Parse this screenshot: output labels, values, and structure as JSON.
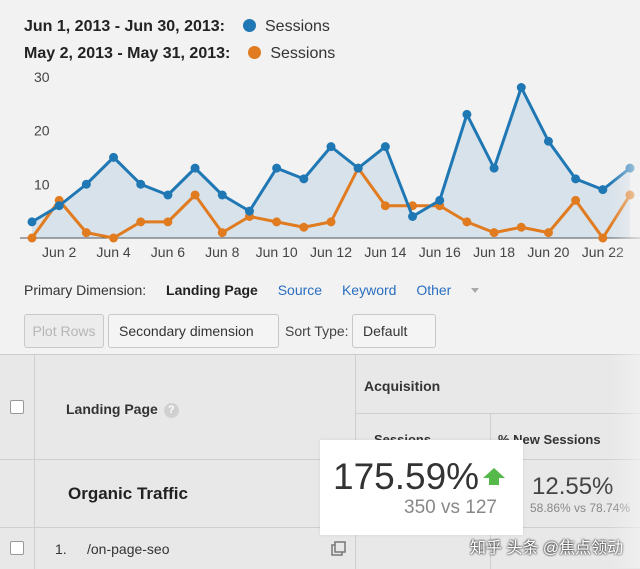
{
  "legend": [
    {
      "range": "Jun 1, 2013 - Jun 30, 2013:",
      "series": "Sessions",
      "color": "#1f77b4"
    },
    {
      "range": "May 2, 2013 - May 31, 2013:",
      "series": "Sessions",
      "color": "#e07b20"
    }
  ],
  "chart_data": {
    "type": "line",
    "yticks": [
      10,
      20,
      30
    ],
    "ylim": [
      0,
      32
    ],
    "xticks": [
      "Jun 2",
      "Jun 4",
      "Jun 6",
      "Jun 8",
      "Jun 10",
      "Jun 12",
      "Jun 14",
      "Jun 16",
      "Jun 18",
      "Jun 20",
      "Jun 22"
    ],
    "x": [
      1,
      2,
      3,
      4,
      5,
      6,
      7,
      8,
      9,
      10,
      11,
      12,
      13,
      14,
      15,
      16,
      17,
      18,
      19,
      20,
      21,
      22,
      23
    ],
    "series": [
      {
        "name": "Jun 1, 2013 - Jun 30, 2013: Sessions",
        "color": "#1f77b4",
        "values": [
          3,
          6,
          10,
          15,
          10,
          8,
          13,
          8,
          5,
          13,
          11,
          17,
          13,
          17,
          4,
          7,
          23,
          13,
          28,
          18,
          11,
          9,
          13
        ]
      },
      {
        "name": "May 2, 2013 - May 31, 2013: Sessions",
        "color": "#e07b20",
        "values": [
          0,
          7,
          1,
          0,
          3,
          3,
          8,
          1,
          4,
          3,
          2,
          3,
          13,
          6,
          6,
          6,
          3,
          1,
          2,
          1,
          7,
          0,
          8
        ]
      }
    ]
  },
  "dimension_bar": {
    "label": "Primary Dimension:",
    "active": "Landing Page",
    "links": [
      "Source",
      "Keyword",
      "Other"
    ]
  },
  "toolbar": {
    "plot_rows": "Plot Rows",
    "secondary_dimension": "Secondary dimension",
    "sort_label": "Sort Type:",
    "sort_value": "Default"
  },
  "table": {
    "acquisition": "Acquisition",
    "landing_page_header": "Landing Page",
    "sessions_header": "Sessions",
    "new_sessions_header": "% New Sessions",
    "group_label": "Organic Traffic",
    "new_sessions_value": "12.55%",
    "new_sessions_sub": "58.86% vs 78.74%",
    "row_index": "1.",
    "row_page": "/on-page-seo"
  },
  "highlight": {
    "value": "175.59%",
    "compare": "350 vs 127"
  },
  "watermark": "知乎 头条 @焦点领动"
}
